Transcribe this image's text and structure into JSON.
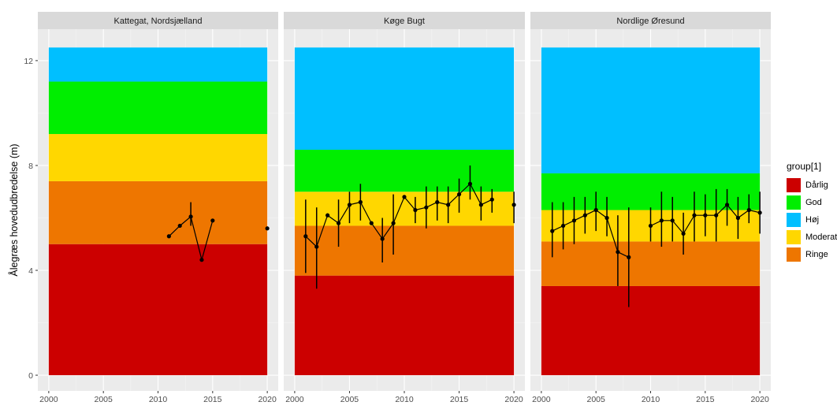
{
  "chart_data": {
    "type": "faceted-line-with-errorbars",
    "ylabel": "Ålegræs hovedudbredelse (m)",
    "xlabel": "",
    "xlim": [
      1999,
      2021
    ],
    "ylim": [
      -0.6,
      13.2
    ],
    "x_ticks": [
      2000,
      2005,
      2010,
      2015,
      2020
    ],
    "y_ticks": [
      0,
      4,
      8,
      12
    ],
    "grid": true,
    "legend": {
      "title": "group[1]",
      "placement": "right",
      "entries": [
        {
          "label": "Dårlig",
          "color": "#CC0000"
        },
        {
          "label": "God",
          "color": "#00EE00"
        },
        {
          "label": "Høj",
          "color": "#00BFFF"
        },
        {
          "label": "Moderat",
          "color": "#FFD700"
        },
        {
          "label": "Ringe",
          "color": "#EE7600"
        }
      ]
    },
    "panels": [
      {
        "title": "Kattegat, Nordsjælland",
        "bands": [
          {
            "group": "Dårlig",
            "from": 0,
            "to": 5.0
          },
          {
            "group": "Ringe",
            "from": 5.0,
            "to": 7.4
          },
          {
            "group": "Moderat",
            "from": 7.4,
            "to": 9.2
          },
          {
            "group": "God",
            "from": 9.2,
            "to": 11.2
          },
          {
            "group": "Høj",
            "from": 11.2,
            "to": 12.5
          }
        ],
        "line": [
          {
            "x": 2011,
            "y": 5.3
          },
          {
            "x": 2012,
            "y": 5.7
          },
          {
            "x": 2013,
            "y": 6.05,
            "lo": 5.7,
            "hi": 6.6
          },
          {
            "x": 2014,
            "y": 4.4
          },
          {
            "x": 2015,
            "y": 5.9
          }
        ],
        "points": [
          {
            "x": 2020,
            "y": 5.6
          }
        ]
      },
      {
        "title": "Køge Bugt",
        "bands": [
          {
            "group": "Dårlig",
            "from": 0,
            "to": 3.8
          },
          {
            "group": "Ringe",
            "from": 3.8,
            "to": 5.7
          },
          {
            "group": "Moderat",
            "from": 5.7,
            "to": 7.0
          },
          {
            "group": "God",
            "from": 7.0,
            "to": 8.6
          },
          {
            "group": "Høj",
            "from": 8.6,
            "to": 12.5
          }
        ],
        "line": [
          {
            "x": 2001,
            "y": 5.3,
            "lo": 3.9,
            "hi": 6.7
          },
          {
            "x": 2002,
            "y": 4.9,
            "lo": 3.3,
            "hi": 6.4
          },
          {
            "x": 2003,
            "y": 6.1
          },
          {
            "x": 2004,
            "y": 5.8,
            "lo": 4.9,
            "hi": 6.7
          },
          {
            "x": 2005,
            "y": 6.5,
            "lo": 5.8,
            "hi": 7.0
          },
          {
            "x": 2006,
            "y": 6.6,
            "lo": 5.9,
            "hi": 7.3
          },
          {
            "x": 2007,
            "y": 5.8
          },
          {
            "x": 2008,
            "y": 5.2,
            "lo": 4.3,
            "hi": 6.0
          },
          {
            "x": 2009,
            "y": 5.8,
            "lo": 4.6,
            "hi": 6.9
          },
          {
            "x": 2010,
            "y": 6.8
          },
          {
            "x": 2011,
            "y": 6.3,
            "lo": 5.8,
            "hi": 6.8
          },
          {
            "x": 2012,
            "y": 6.4,
            "lo": 5.6,
            "hi": 7.2
          },
          {
            "x": 2013,
            "y": 6.6,
            "lo": 5.9,
            "hi": 7.2
          },
          {
            "x": 2014,
            "y": 6.5,
            "lo": 5.8,
            "hi": 7.2
          },
          {
            "x": 2015,
            "y": 6.9,
            "lo": 6.2,
            "hi": 7.5
          },
          {
            "x": 2016,
            "y": 7.3,
            "lo": 6.7,
            "hi": 8.0
          },
          {
            "x": 2017,
            "y": 6.5,
            "lo": 5.9,
            "hi": 7.2
          },
          {
            "x": 2018,
            "y": 6.7,
            "lo": 6.2,
            "hi": 7.1
          }
        ],
        "points": [
          {
            "x": 2020,
            "y": 6.5,
            "lo": 5.8,
            "hi": 7.0
          }
        ]
      },
      {
        "title": "Nordlige Øresund",
        "bands": [
          {
            "group": "Dårlig",
            "from": 0,
            "to": 3.4
          },
          {
            "group": "Ringe",
            "from": 3.4,
            "to": 5.1
          },
          {
            "group": "Moderat",
            "from": 5.1,
            "to": 6.3
          },
          {
            "group": "God",
            "from": 6.3,
            "to": 7.7
          },
          {
            "group": "Høj",
            "from": 7.7,
            "to": 12.5
          }
        ],
        "line": [
          {
            "x": 2001,
            "y": 5.5,
            "lo": 4.5,
            "hi": 6.6
          },
          {
            "x": 2002,
            "y": 5.7,
            "lo": 4.8,
            "hi": 6.6
          },
          {
            "x": 2003,
            "y": 5.9,
            "lo": 5.0,
            "hi": 6.8
          },
          {
            "x": 2004,
            "y": 6.1,
            "lo": 5.4,
            "hi": 6.8
          },
          {
            "x": 2005,
            "y": 6.3,
            "lo": 5.5,
            "hi": 7.0
          },
          {
            "x": 2006,
            "y": 6.0,
            "lo": 5.3,
            "hi": 6.8
          },
          {
            "x": 2007,
            "y": 4.7,
            "lo": 3.4,
            "hi": 6.1
          },
          {
            "x": 2008,
            "y": 4.5,
            "lo": 2.6,
            "hi": 6.4
          }
        ],
        "line2": [
          {
            "x": 2010,
            "y": 5.7,
            "lo": 5.1,
            "hi": 6.4
          },
          {
            "x": 2011,
            "y": 5.9,
            "lo": 4.9,
            "hi": 7.0
          },
          {
            "x": 2012,
            "y": 5.9,
            "lo": 5.1,
            "hi": 6.8
          },
          {
            "x": 2013,
            "y": 5.4,
            "lo": 4.6,
            "hi": 6.2
          },
          {
            "x": 2014,
            "y": 6.1,
            "lo": 5.1,
            "hi": 7.0
          },
          {
            "x": 2015,
            "y": 6.1,
            "lo": 5.3,
            "hi": 6.9
          },
          {
            "x": 2016,
            "y": 6.1,
            "lo": 5.1,
            "hi": 7.1
          },
          {
            "x": 2017,
            "y": 6.5,
            "lo": 5.7,
            "hi": 7.1
          },
          {
            "x": 2018,
            "y": 6.0,
            "lo": 5.2,
            "hi": 6.8
          },
          {
            "x": 2019,
            "y": 6.3,
            "lo": 5.8,
            "hi": 6.9
          },
          {
            "x": 2020,
            "y": 6.2,
            "lo": 5.4,
            "hi": 7.0
          }
        ],
        "points": []
      }
    ]
  }
}
